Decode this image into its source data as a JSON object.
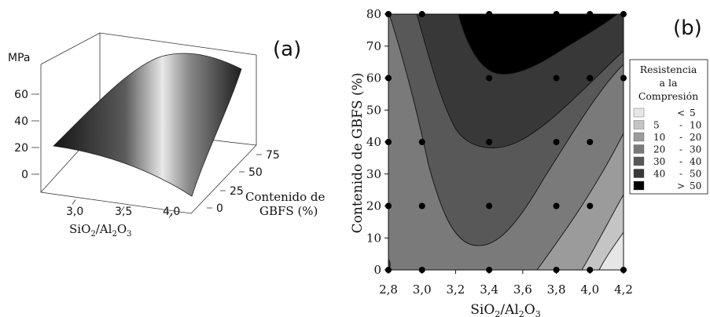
{
  "panel_a": {
    "label": "(a)",
    "zlabel": "MPa",
    "xlabel_parts": [
      "SiO",
      "2",
      "/Al",
      "2",
      "O",
      "3"
    ],
    "ylabel_line1": "Contenido de",
    "ylabel_line2": "GBFS (%)",
    "z_ticks": [
      "0",
      "20",
      "40",
      "60"
    ],
    "x_ticks": [
      "3,0",
      "3,5",
      "4,0"
    ],
    "y_ticks": [
      "0",
      "25",
      "50",
      "75"
    ]
  },
  "panel_b": {
    "label": "(b)",
    "xlabel_parts": [
      "SiO",
      "2",
      "/Al",
      "2",
      "O",
      "3"
    ],
    "ylabel": "Contenido de GBFS (%)",
    "legend": {
      "title_lines": [
        "Resistencia",
        "a la",
        "Compresión"
      ],
      "entries": [
        {
          "lo": "",
          "hi": "5",
          "sym": "<"
        },
        {
          "lo": "5",
          "hi": "10",
          "sym": "-"
        },
        {
          "lo": "10",
          "hi": "20",
          "sym": "-"
        },
        {
          "lo": "20",
          "hi": "30",
          "sym": "-"
        },
        {
          "lo": "30",
          "hi": "40",
          "sym": "-"
        },
        {
          "lo": "40",
          "hi": "50",
          "sym": "-"
        },
        {
          "lo": "",
          "hi": "50",
          "sym": ">"
        }
      ]
    }
  },
  "chart_data": [
    {
      "type": "surface",
      "x_range": [
        2.8,
        4.2
      ],
      "y_range": [
        0,
        80
      ],
      "z_range": [
        0,
        60
      ]
    },
    {
      "type": "contour",
      "x_range": [
        2.8,
        4.2
      ],
      "y_range": [
        0,
        80
      ],
      "x_ticks": [
        "2,8",
        "3,0",
        "3,2",
        "3,4",
        "3,6",
        "3,8",
        "4,0",
        "4,2"
      ],
      "y_ticks": [
        "0",
        "10",
        "20",
        "30",
        "40",
        "50",
        "60",
        "70",
        "80"
      ],
      "level_colors": [
        "#e6e6e6",
        "#c4c4c4",
        "#9b9b9b",
        "#7a7a7a",
        "#585858",
        "#383838",
        "#000000"
      ],
      "points": [
        {
          "x": 2.8,
          "y": 0
        },
        {
          "x": 3.0,
          "y": 0
        },
        {
          "x": 3.4,
          "y": 0
        },
        {
          "x": 3.8,
          "y": 0
        },
        {
          "x": 4.0,
          "y": 0
        },
        {
          "x": 4.2,
          "y": 0
        },
        {
          "x": 2.8,
          "y": 20
        },
        {
          "x": 3.0,
          "y": 20
        },
        {
          "x": 3.4,
          "y": 20
        },
        {
          "x": 3.8,
          "y": 20
        },
        {
          "x": 4.0,
          "y": 20
        },
        {
          "x": 2.8,
          "y": 40
        },
        {
          "x": 3.0,
          "y": 40
        },
        {
          "x": 3.4,
          "y": 40
        },
        {
          "x": 3.8,
          "y": 40
        },
        {
          "x": 4.0,
          "y": 40
        },
        {
          "x": 2.8,
          "y": 60
        },
        {
          "x": 3.4,
          "y": 60
        },
        {
          "x": 3.8,
          "y": 60
        },
        {
          "x": 4.0,
          "y": 60
        },
        {
          "x": 4.2,
          "y": 60
        },
        {
          "x": 2.8,
          "y": 80
        },
        {
          "x": 3.0,
          "y": 80
        },
        {
          "x": 3.4,
          "y": 80
        },
        {
          "x": 3.8,
          "y": 80
        },
        {
          "x": 4.0,
          "y": 80
        },
        {
          "x": 4.2,
          "y": 80
        }
      ]
    }
  ]
}
